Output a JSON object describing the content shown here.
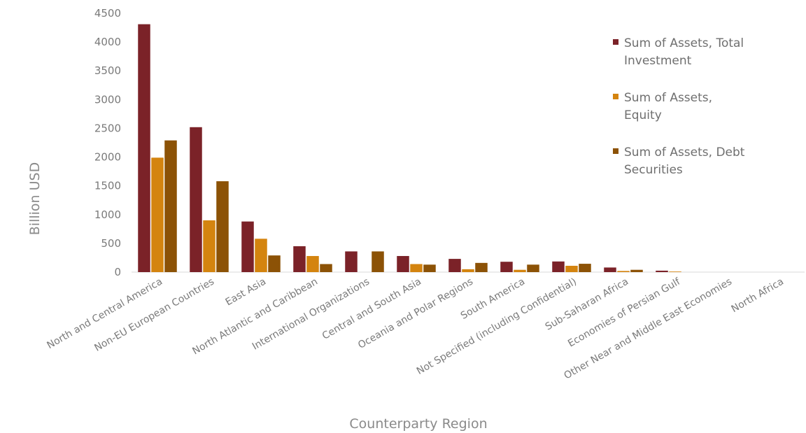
{
  "chart_data": {
    "type": "bar",
    "title": "",
    "xlabel": "Counterparty Region",
    "ylabel": "Billion USD",
    "ylim": [
      0,
      4500
    ],
    "yticks": [
      0,
      500,
      1000,
      1500,
      2000,
      2500,
      3000,
      3500,
      4000,
      4500
    ],
    "grid": false,
    "legend_position": "top-right",
    "categories": [
      "North and Central America",
      "Non-EU European Countries",
      "East Asia",
      "North Atlantic and Caribbean",
      "International Organizations",
      "Central and South Asia",
      "Oceania and Polar Regions",
      "South America",
      "Not Specified (including Confidential)",
      "Sub-Saharan Africa",
      "Economies of Persian Gulf",
      "Other Near and Middle East Economies",
      "North Africa"
    ],
    "series": [
      {
        "name": "Sum of Assets, Total Investment",
        "legend_lines": [
          "Sum of Assets, Total",
          "Investment"
        ],
        "color": "#7b2228",
        "values": [
          4310,
          2520,
          880,
          450,
          360,
          280,
          230,
          180,
          185,
          80,
          25,
          0,
          0
        ]
      },
      {
        "name": "Sum of Assets, Equity",
        "legend_lines": [
          "Sum of Assets,",
          "Equity"
        ],
        "color": "#d4840f",
        "values": [
          1990,
          900,
          580,
          280,
          0,
          140,
          50,
          40,
          110,
          20,
          10,
          0,
          0
        ]
      },
      {
        "name": "Sum of Assets, Debt Securities",
        "legend_lines": [
          "Sum of Assets, Debt",
          "Securities"
        ],
        "color": "#8c5206",
        "values": [
          2290,
          1580,
          290,
          140,
          360,
          130,
          160,
          130,
          145,
          40,
          0,
          0,
          0
        ]
      }
    ]
  }
}
